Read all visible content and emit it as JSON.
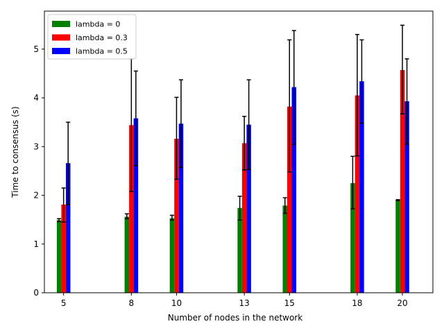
{
  "chart_data": {
    "type": "bar",
    "xlabel": "Number of nodes in the network",
    "ylabel": "Time to consensus (s)",
    "x": [
      5,
      8,
      10,
      13,
      15,
      18,
      20
    ],
    "xlim": [
      4.15,
      21.35
    ],
    "ylim": [
      0,
      5.78
    ],
    "yticks": [
      0,
      1,
      2,
      3,
      4,
      5
    ],
    "grid": false,
    "legend_position": "top-left",
    "series": [
      {
        "name": "lambda = 0",
        "color": "#008000",
        "values": [
          1.49,
          1.56,
          1.53,
          1.74,
          1.79,
          2.25,
          1.9
        ],
        "err_low": [
          1.46,
          1.52,
          1.49,
          1.49,
          1.63,
          1.72,
          1.89
        ],
        "err_high": [
          1.52,
          1.62,
          1.59,
          1.98,
          1.95,
          2.8,
          1.91
        ]
      },
      {
        "name": "lambda = 0.3",
        "color": "#ff0000",
        "values": [
          1.81,
          3.44,
          3.16,
          3.07,
          3.82,
          4.05,
          4.57
        ],
        "err_low": [
          1.45,
          2.08,
          2.33,
          2.52,
          2.48,
          2.81,
          3.67
        ],
        "err_high": [
          2.15,
          4.8,
          4.01,
          3.62,
          5.19,
          5.3,
          5.49
        ]
      },
      {
        "name": "lambda = 0.5",
        "color": "#0000ff",
        "values": [
          2.66,
          3.58,
          3.47,
          3.45,
          4.22,
          4.34,
          3.93
        ],
        "err_low": [
          1.81,
          2.61,
          2.57,
          2.53,
          3.05,
          3.48,
          3.05
        ],
        "err_high": [
          3.5,
          4.55,
          4.37,
          4.37,
          5.38,
          5.19,
          4.8
        ]
      }
    ]
  }
}
